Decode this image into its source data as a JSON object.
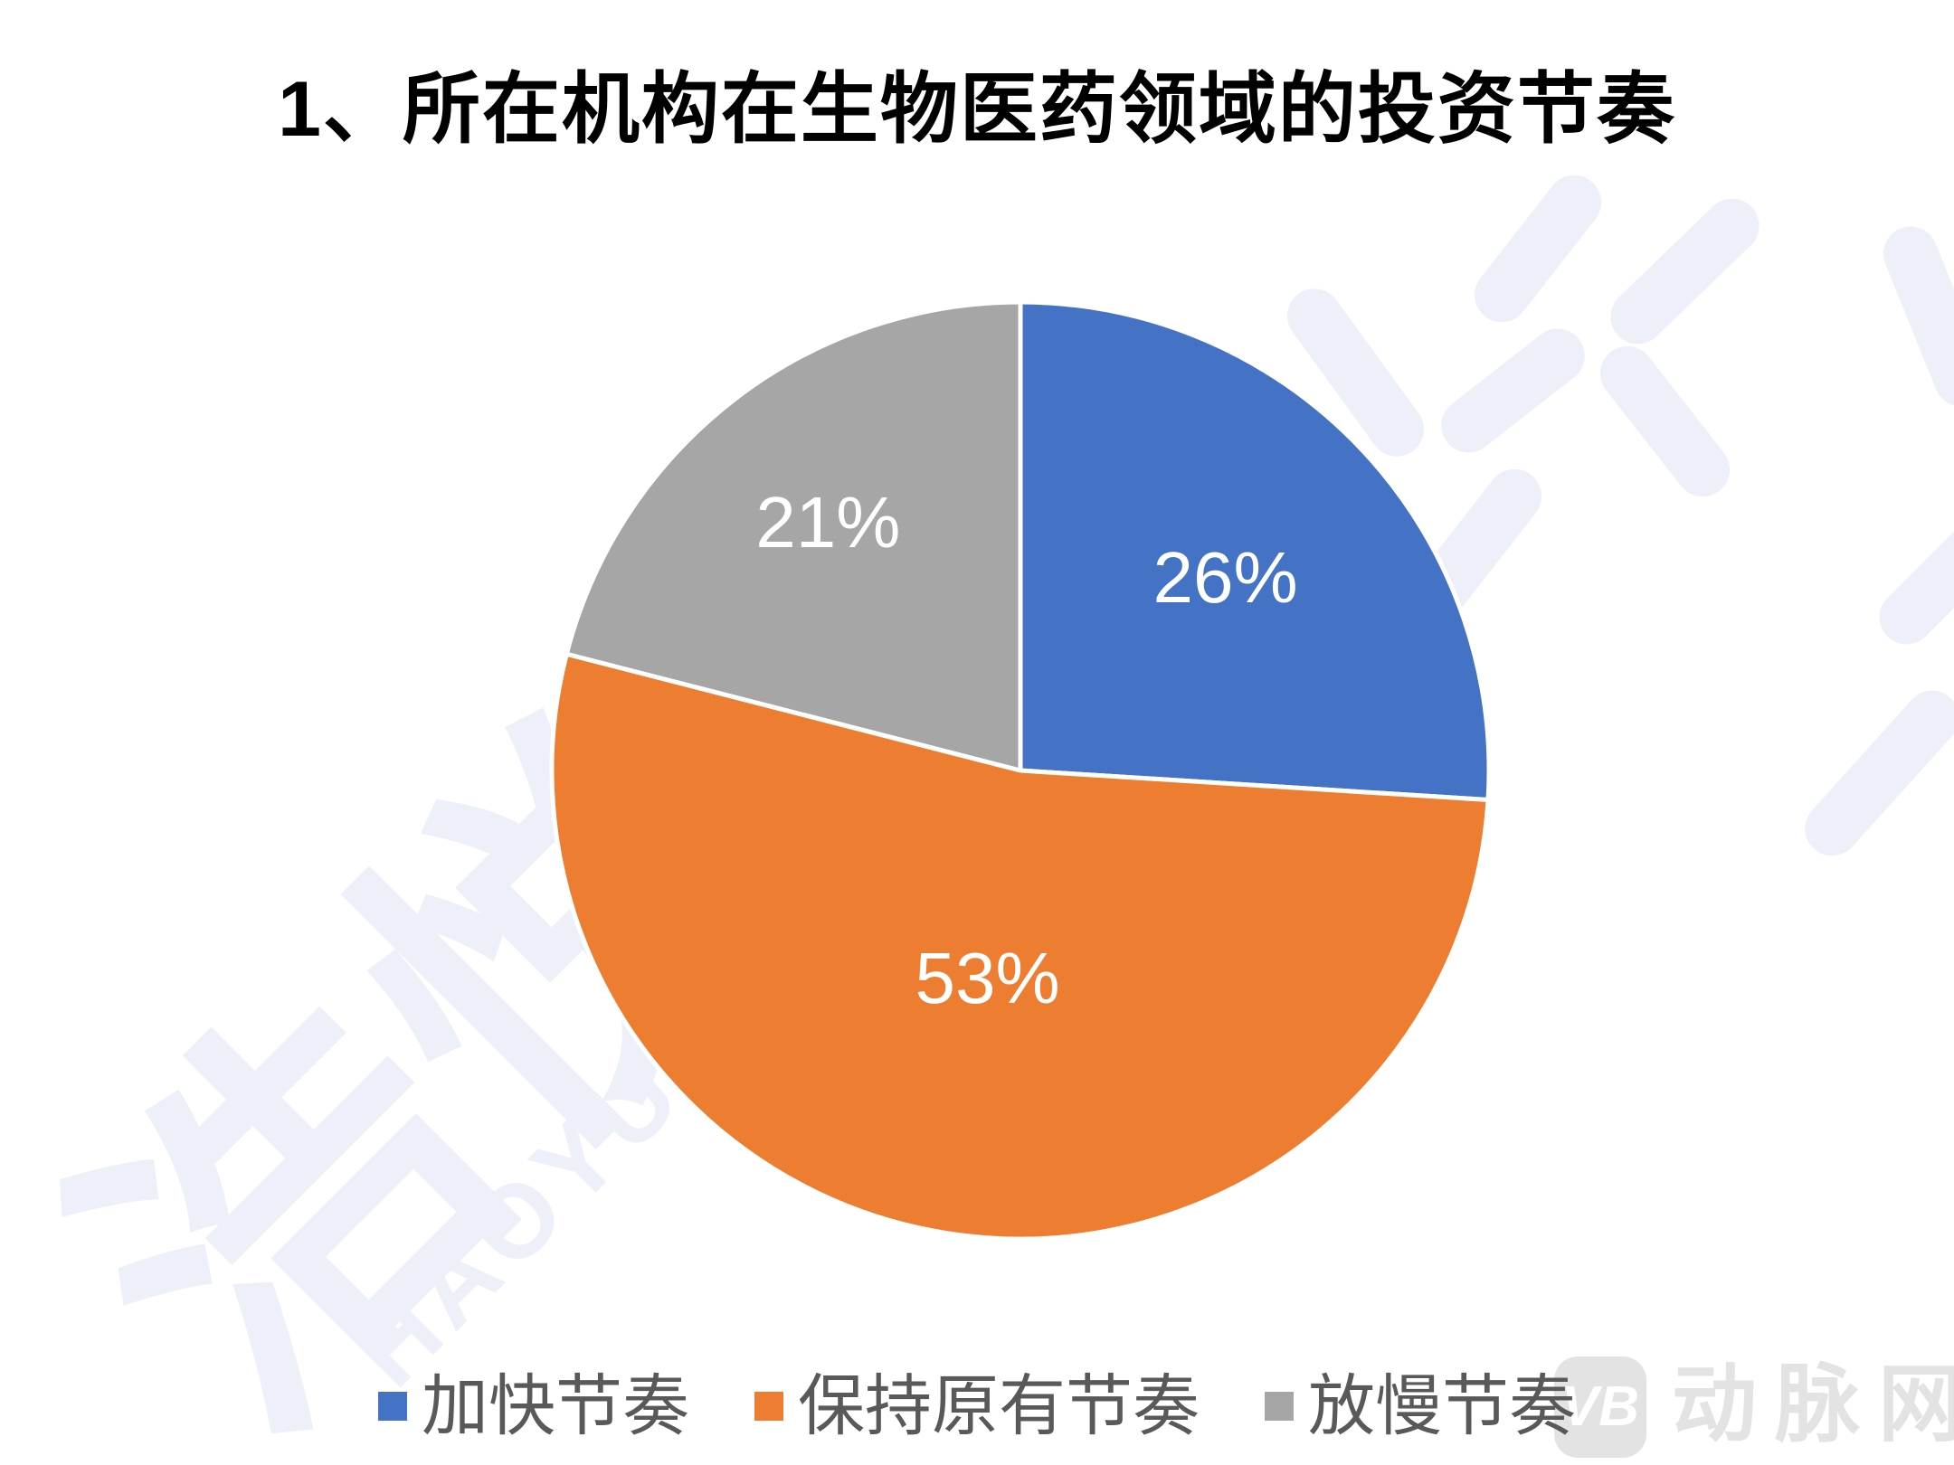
{
  "title": "1、所在机构在生物医药领域的投资节奏",
  "chart_data": {
    "type": "pie",
    "title": "1、所在机构在生物医药领域的投资节奏",
    "categories": [
      "加快节奏",
      "保持原有节奏",
      "放慢节奏"
    ],
    "values": [
      26,
      53,
      21
    ],
    "labels": [
      "26%",
      "53%",
      "21%"
    ],
    "colors": [
      "#4472C4",
      "#ED7D31",
      "#A6A6A6"
    ],
    "label_color": "#FFFFFF",
    "start_angle": 0,
    "direction": "clockwise",
    "legend_position": "bottom",
    "legend_text_color": "#595959"
  },
  "legend": {
    "items": [
      {
        "label": "加快节奏"
      },
      {
        "label": "保持原有节奏"
      },
      {
        "label": "放慢节奏"
      }
    ]
  },
  "watermark": {
    "cn": "浩悦",
    "en": "HAOYUE",
    "color": "#EDF0F8"
  },
  "logo": {
    "badge": "VB",
    "text": "动脉网",
    "color": "#E3E3E4"
  }
}
